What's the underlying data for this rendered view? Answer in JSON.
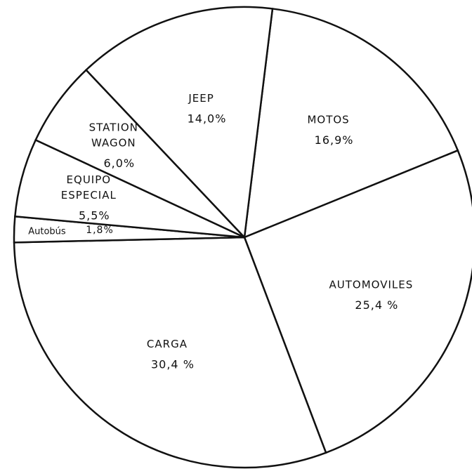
{
  "chart_data": {
    "type": "pie",
    "categories": [
      "MOTOS",
      "AUTOMOVILES",
      "CARGA",
      "Autobús",
      "EQUIPO ESPECIAL",
      "STATION WAGON",
      "JEEP"
    ],
    "values": [
      16.9,
      25.4,
      30.4,
      1.8,
      5.5,
      6.0,
      14.0
    ],
    "value_labels": [
      "16,9%",
      "25,4 %",
      "30,4 %",
      "1,8%",
      "5,5%",
      "6,0%",
      "14,0%"
    ],
    "color": "#ffffff"
  }
}
